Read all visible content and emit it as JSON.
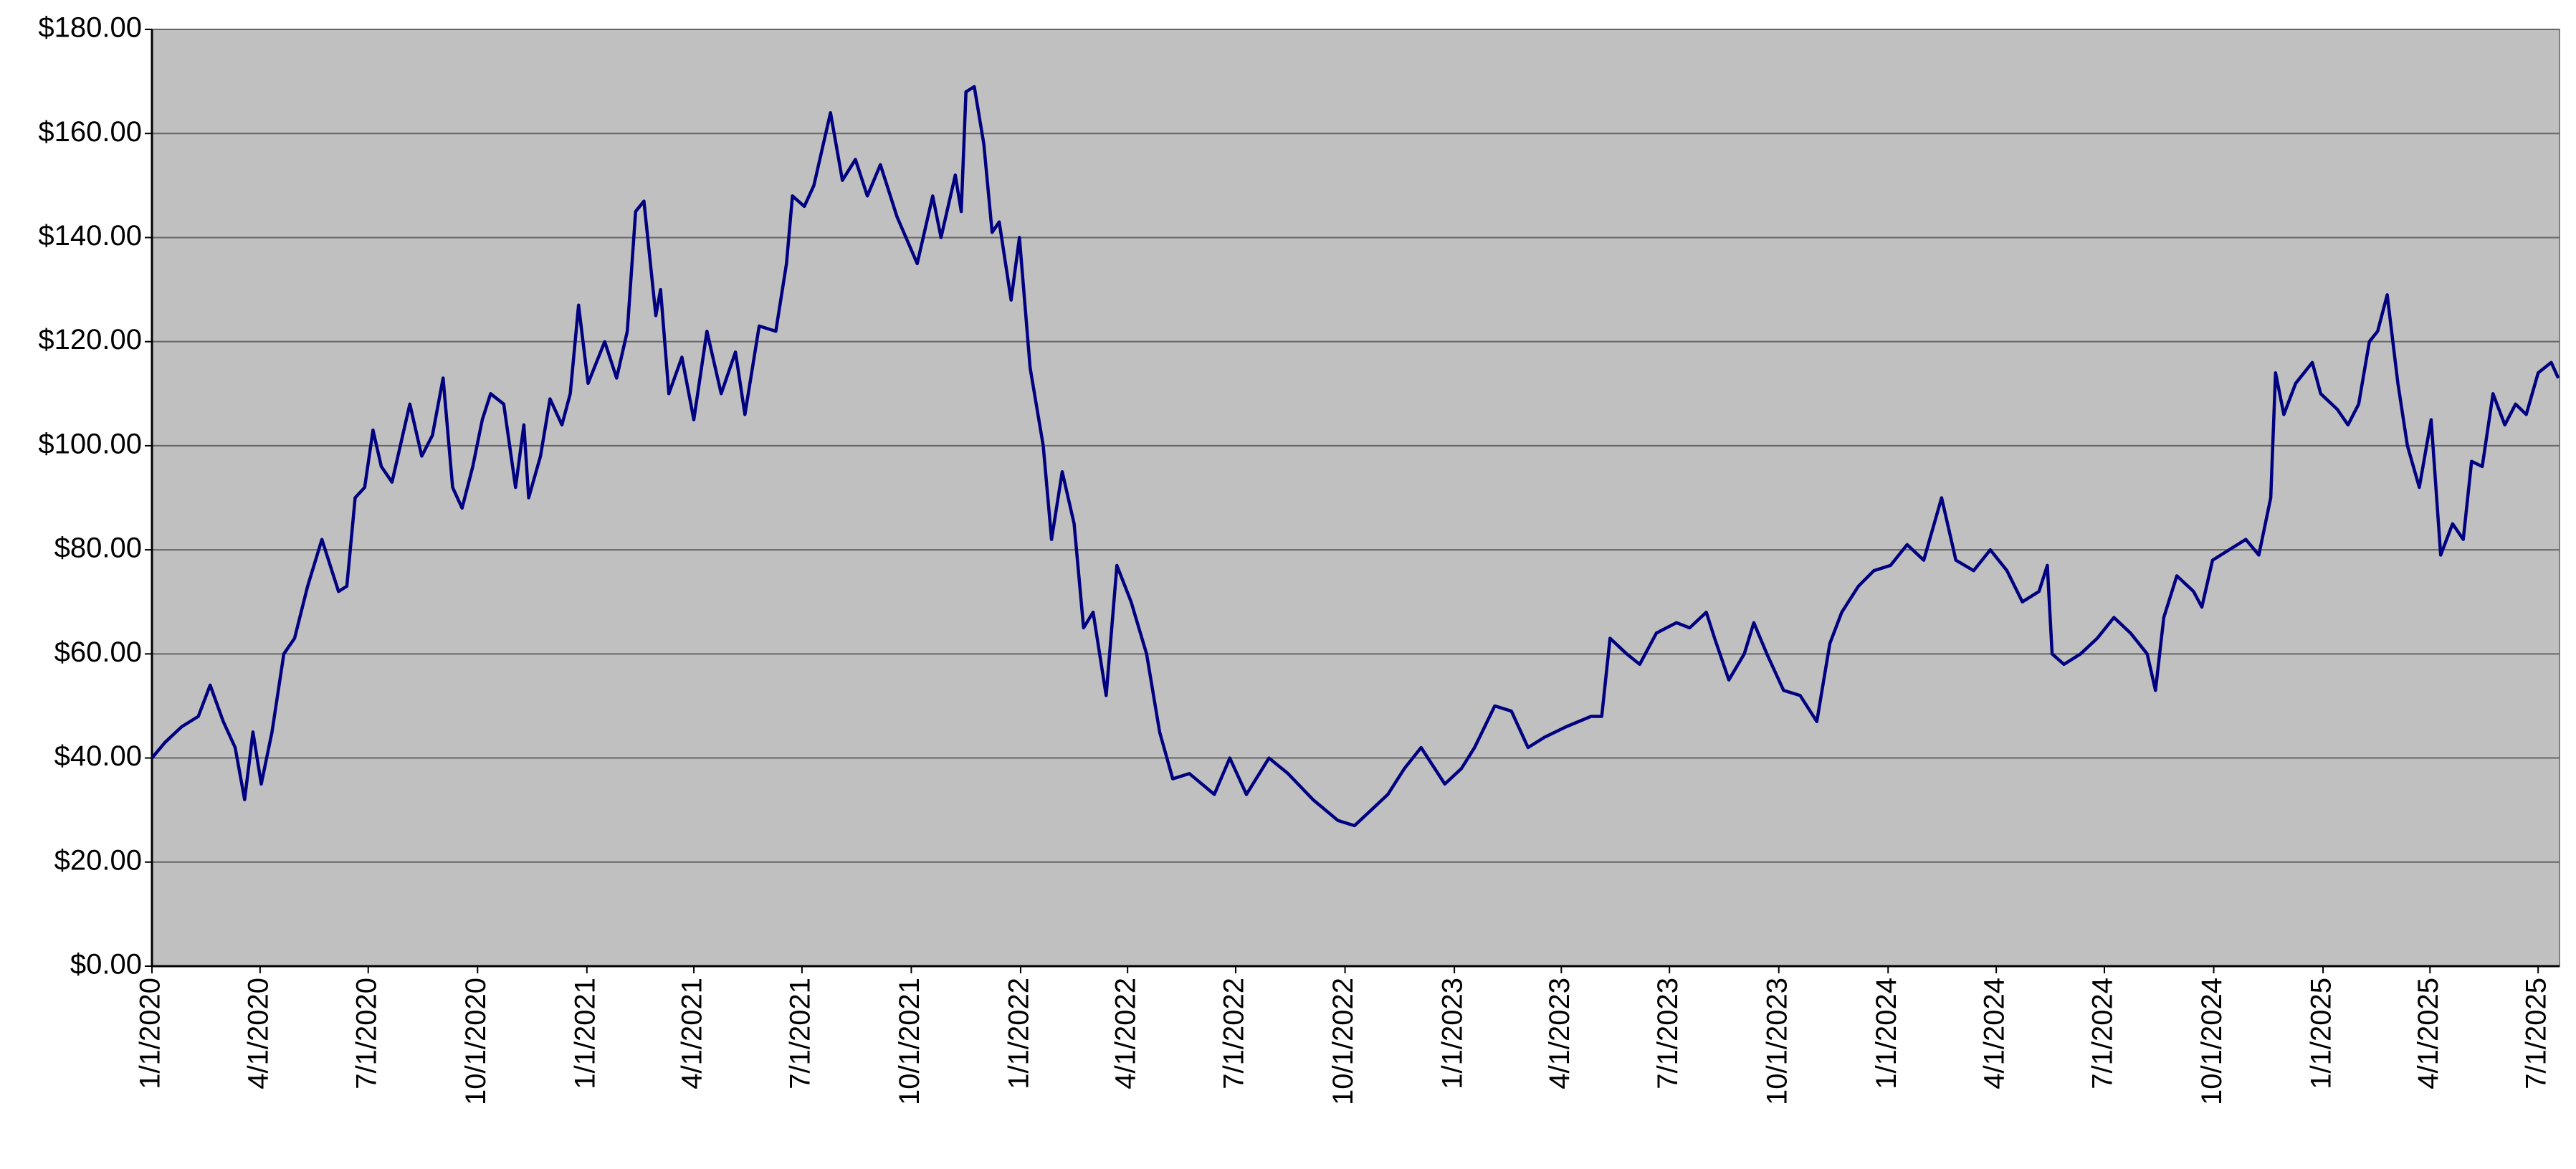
{
  "chart_data": {
    "type": "line",
    "x": [
      "2020-01-01",
      "2020-01-12",
      "2020-01-26",
      "2020-02-09",
      "2020-02-19",
      "2020-03-01",
      "2020-03-11",
      "2020-03-19",
      "2020-03-26",
      "2020-04-02",
      "2020-04-11",
      "2020-04-21",
      "2020-04-30",
      "2020-05-11",
      "2020-05-23",
      "2020-06-06",
      "2020-06-13",
      "2020-06-20",
      "2020-06-28",
      "2020-07-05",
      "2020-07-12",
      "2020-07-21",
      "2020-08-05",
      "2020-08-15",
      "2020-08-24",
      "2020-09-02",
      "2020-09-10",
      "2020-09-18",
      "2020-09-27",
      "2020-10-05",
      "2020-10-12",
      "2020-10-23",
      "2020-11-02",
      "2020-11-09",
      "2020-11-13",
      "2020-11-23",
      "2020-12-01",
      "2020-12-11",
      "2020-12-18",
      "2020-12-25",
      "2021-01-02",
      "2021-01-16",
      "2021-01-26",
      "2021-02-04",
      "2021-02-11",
      "2021-02-18",
      "2021-02-28",
      "2021-03-04",
      "2021-03-11",
      "2021-03-22",
      "2021-04-01",
      "2021-04-12",
      "2021-04-24",
      "2021-05-06",
      "2021-05-14",
      "2021-05-26",
      "2021-06-09",
      "2021-06-18",
      "2021-06-23",
      "2021-07-03",
      "2021-07-11",
      "2021-07-25",
      "2021-08-04",
      "2021-08-15",
      "2021-08-25",
      "2021-09-05",
      "2021-09-19",
      "2021-10-06",
      "2021-10-19",
      "2021-10-26",
      "2021-11-07",
      "2021-11-12",
      "2021-11-16",
      "2021-11-23",
      "2021-12-01",
      "2021-12-08",
      "2021-12-14",
      "2021-12-24",
      "2021-12-31",
      "2022-01-09",
      "2022-01-20",
      "2022-01-27",
      "2022-02-05",
      "2022-02-15",
      "2022-02-23",
      "2022-03-03",
      "2022-03-14",
      "2022-03-23",
      "2022-04-04",
      "2022-04-17",
      "2022-04-28",
      "2022-05-09",
      "2022-05-23",
      "2022-06-13",
      "2022-06-26",
      "2022-07-10",
      "2022-07-29",
      "2022-08-14",
      "2022-09-04",
      "2022-09-25",
      "2022-10-09",
      "2022-10-23",
      "2022-11-06",
      "2022-11-20",
      "2022-12-04",
      "2022-12-24",
      "2023-01-07",
      "2023-01-18",
      "2023-02-04",
      "2023-02-18",
      "2023-03-04",
      "2023-03-18",
      "2023-04-05",
      "2023-04-26",
      "2023-05-05",
      "2023-05-12",
      "2023-05-26",
      "2023-06-06",
      "2023-06-20",
      "2023-07-07",
      "2023-07-18",
      "2023-08-01",
      "2023-08-08",
      "2023-08-20",
      "2023-09-02",
      "2023-09-10",
      "2023-09-21",
      "2023-10-05",
      "2023-10-19",
      "2023-11-02",
      "2023-11-13",
      "2023-11-23",
      "2023-12-07",
      "2023-12-20",
      "2024-01-03",
      "2024-01-17",
      "2024-01-31",
      "2024-02-15",
      "2024-02-27",
      "2024-03-13",
      "2024-03-27",
      "2024-04-10",
      "2024-04-23",
      "2024-05-07",
      "2024-05-14",
      "2024-05-18",
      "2024-05-28",
      "2024-06-11",
      "2024-06-25",
      "2024-07-09",
      "2024-07-23",
      "2024-08-06",
      "2024-08-13",
      "2024-08-20",
      "2024-08-31",
      "2024-09-14",
      "2024-09-21",
      "2024-09-30",
      "2024-10-14",
      "2024-10-28",
      "2024-11-08",
      "2024-11-18",
      "2024-11-22",
      "2024-11-29",
      "2024-12-09",
      "2024-12-23",
      "2024-12-30",
      "2025-01-13",
      "2025-01-22",
      "2025-01-31",
      "2025-02-09",
      "2025-02-16",
      "2025-02-24",
      "2025-03-05",
      "2025-03-13",
      "2025-03-23",
      "2025-04-02",
      "2025-04-10",
      "2025-04-20",
      "2025-04-29",
      "2025-05-06",
      "2025-05-15",
      "2025-05-24",
      "2025-06-03",
      "2025-06-12",
      "2025-06-21",
      "2025-07-01",
      "2025-07-12",
      "2025-07-18"
    ],
    "series": [
      {
        "color": "#000080",
        "values": [
          40,
          43,
          46,
          48,
          54,
          47,
          42,
          32,
          45,
          35,
          45,
          60,
          63,
          73,
          82,
          72,
          73,
          90,
          92,
          103,
          96,
          93,
          108,
          98,
          102,
          113,
          92,
          88,
          96,
          105,
          110,
          108,
          92,
          104,
          90,
          98,
          109,
          104,
          110,
          127,
          112,
          120,
          113,
          122,
          145,
          147,
          125,
          130,
          110,
          117,
          105,
          122,
          110,
          118,
          106,
          123,
          122,
          135,
          148,
          146,
          150,
          164,
          151,
          155,
          148,
          154,
          144,
          135,
          148,
          140,
          152,
          145,
          168,
          169,
          158,
          141,
          143,
          128,
          140,
          115,
          100,
          82,
          95,
          85,
          65,
          68,
          52,
          77,
          70,
          60,
          45,
          36,
          37,
          33,
          40,
          33,
          40,
          37,
          32,
          28,
          27,
          30,
          33,
          38,
          42,
          35,
          38,
          42,
          50,
          49,
          42,
          44,
          46,
          48,
          48,
          63,
          60,
          58,
          64,
          66,
          65,
          68,
          63,
          55,
          60,
          66,
          60,
          53,
          52,
          47,
          62,
          68,
          73,
          76,
          77,
          81,
          78,
          90,
          78,
          76,
          80,
          76,
          70,
          72,
          77,
          60,
          58,
          60,
          63,
          67,
          64,
          60,
          53,
          67,
          75,
          72,
          69,
          78,
          80,
          82,
          79,
          90,
          114,
          106,
          112,
          116,
          110,
          107,
          104,
          108,
          120,
          122,
          129,
          112,
          100,
          92,
          105,
          79,
          85,
          82,
          97,
          96,
          110,
          104,
          108,
          106,
          114,
          116,
          113
        ]
      }
    ],
    "xlim": [
      "2020-01-01",
      "2025-07-19"
    ],
    "xticks": [
      {
        "value": "2020-01-01",
        "label": "1/1/2020"
      },
      {
        "value": "2020-04-01",
        "label": "4/1/2020"
      },
      {
        "value": "2020-07-01",
        "label": "7/1/2020"
      },
      {
        "value": "2020-10-01",
        "label": "10/1/2020"
      },
      {
        "value": "2021-01-01",
        "label": "1/1/2021"
      },
      {
        "value": "2021-04-01",
        "label": "4/1/2021"
      },
      {
        "value": "2021-07-01",
        "label": "7/1/2021"
      },
      {
        "value": "2021-10-01",
        "label": "10/1/2021"
      },
      {
        "value": "2022-01-01",
        "label": "1/1/2022"
      },
      {
        "value": "2022-04-01",
        "label": "4/1/2022"
      },
      {
        "value": "2022-07-01",
        "label": "7/1/2022"
      },
      {
        "value": "2022-10-01",
        "label": "10/1/2022"
      },
      {
        "value": "2023-01-01",
        "label": "1/1/2023"
      },
      {
        "value": "2023-04-01",
        "label": "4/1/2023"
      },
      {
        "value": "2023-07-01",
        "label": "7/1/2023"
      },
      {
        "value": "2023-10-01",
        "label": "10/1/2023"
      },
      {
        "value": "2024-01-01",
        "label": "1/1/2024"
      },
      {
        "value": "2024-04-01",
        "label": "4/1/2024"
      },
      {
        "value": "2024-07-01",
        "label": "7/1/2024"
      },
      {
        "value": "2024-10-01",
        "label": "10/1/2024"
      },
      {
        "value": "2025-01-01",
        "label": "1/1/2025"
      },
      {
        "value": "2025-04-01",
        "label": "4/1/2025"
      },
      {
        "value": "2025-07-01",
        "label": "7/1/2025"
      }
    ],
    "ylim": [
      0,
      180
    ],
    "yticks": [
      {
        "value": 0,
        "label": "$0.00"
      },
      {
        "value": 20,
        "label": "$20.00"
      },
      {
        "value": 40,
        "label": "$40.00"
      },
      {
        "value": 60,
        "label": "$60.00"
      },
      {
        "value": 80,
        "label": "$80.00"
      },
      {
        "value": 100,
        "label": "$100.00"
      },
      {
        "value": 120,
        "label": "$120.00"
      },
      {
        "value": 140,
        "label": "$140.00"
      },
      {
        "value": 160,
        "label": "$160.00"
      },
      {
        "value": 180,
        "label": "$180.00"
      }
    ],
    "grid": true
  }
}
